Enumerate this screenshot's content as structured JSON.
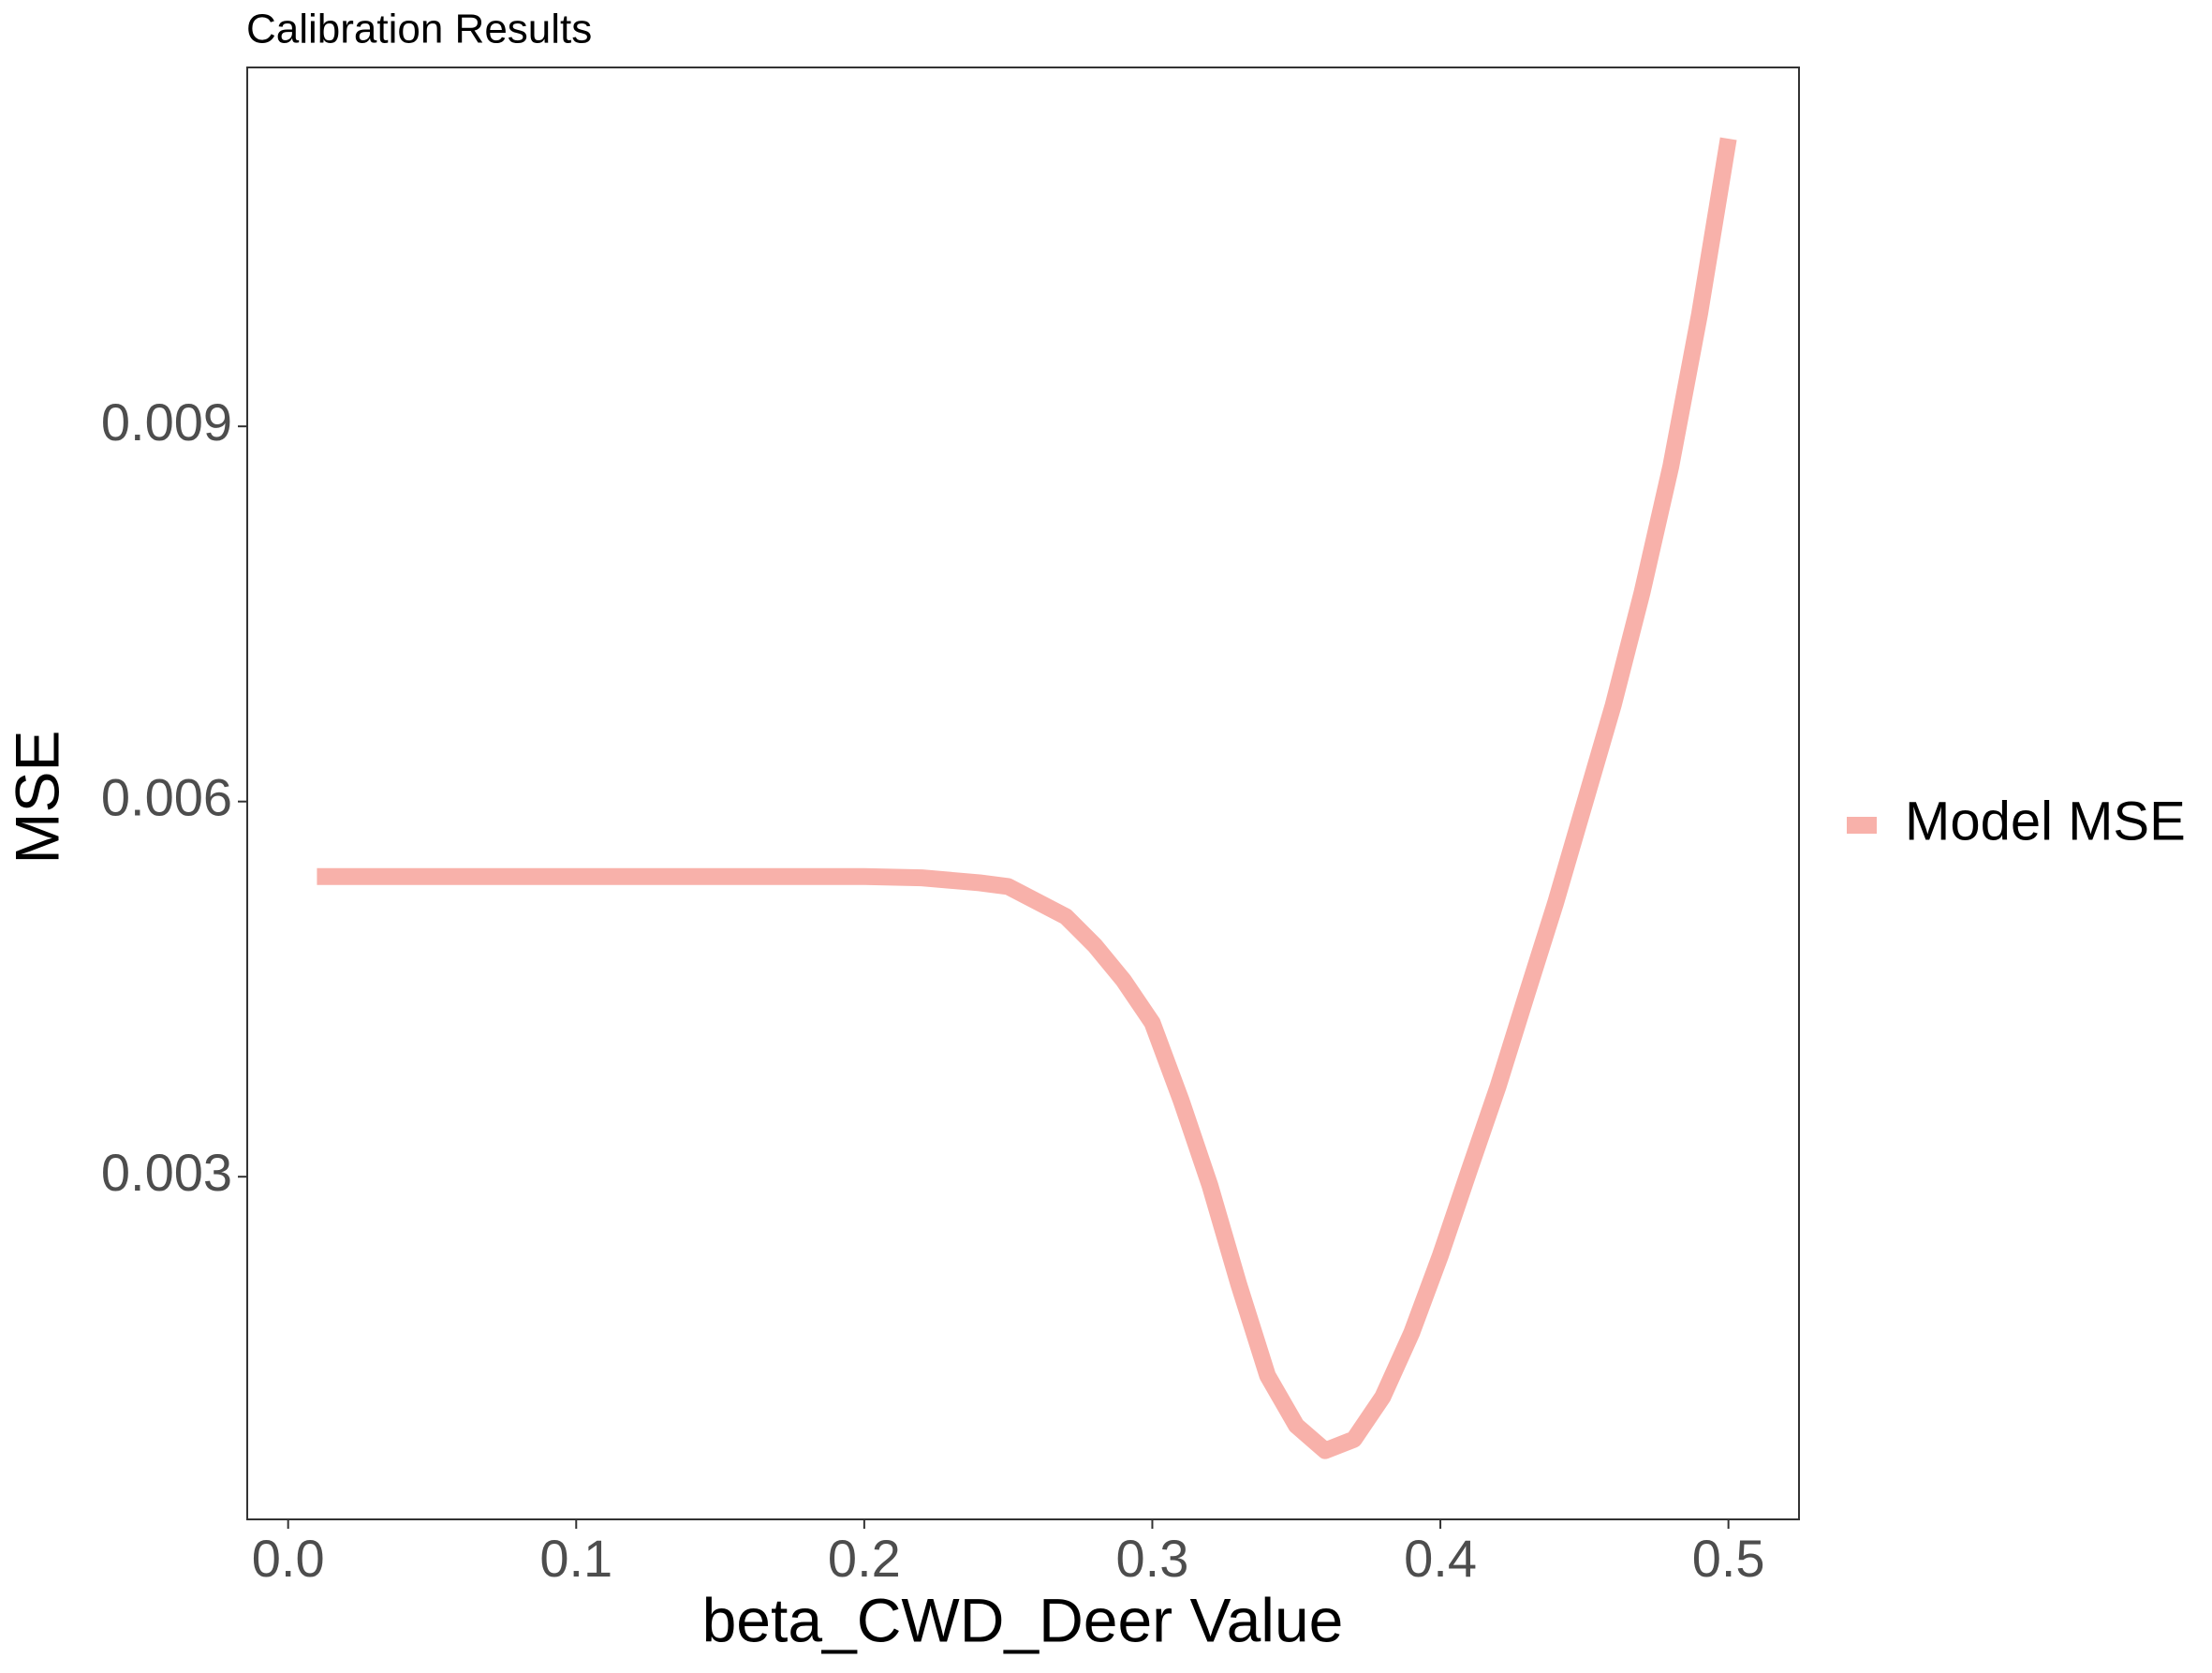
{
  "chart_data": {
    "type": "line",
    "title": "Calibration Results",
    "xlabel": "beta_CWD_Deer Value",
    "ylabel": "MSE",
    "x": [
      0.01,
      0.05,
      0.1,
      0.15,
      0.2,
      0.22,
      0.24,
      0.25,
      0.26,
      0.27,
      0.28,
      0.29,
      0.3,
      0.31,
      0.32,
      0.33,
      0.34,
      0.35,
      0.36,
      0.37,
      0.38,
      0.39,
      0.4,
      0.41,
      0.42,
      0.43,
      0.44,
      0.45,
      0.46,
      0.47,
      0.48,
      0.49,
      0.5
    ],
    "series": [
      {
        "name": "Model MSE",
        "color": "#f8b1aa",
        "values": [
          0.0054,
          0.0054,
          0.0054,
          0.0054,
          0.0054,
          0.00539,
          0.00535,
          0.00532,
          0.0052,
          0.00508,
          0.00485,
          0.00457,
          0.00423,
          0.00361,
          0.00293,
          0.00214,
          0.00141,
          0.00101,
          0.00081,
          0.0009,
          0.00124,
          0.00175,
          0.00237,
          0.00305,
          0.00372,
          0.00446,
          0.00519,
          0.00598,
          0.00677,
          0.00767,
          0.00868,
          0.0099,
          0.0113
        ]
      }
    ],
    "xlim": [
      -0.0142,
      0.5245
    ],
    "ylim": [
      0.00026,
      0.01187
    ],
    "xticks": [
      {
        "value": 0,
        "label": "0.0"
      },
      0.1,
      0.2,
      0.3,
      0.4,
      0.5
    ],
    "yticks": [
      0.003,
      0.006,
      0.009
    ],
    "legend": "right",
    "grid": false
  }
}
